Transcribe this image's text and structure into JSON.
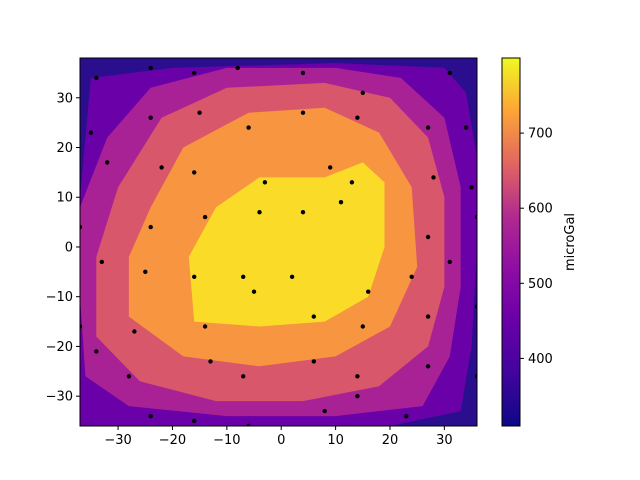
{
  "chart_data": {
    "type": "contour",
    "title": "",
    "xlabel": "",
    "ylabel": "",
    "xlim": [
      -37,
      36
    ],
    "ylim": [
      -36,
      38
    ],
    "x_ticks": [
      -30,
      -20,
      -10,
      0,
      10,
      20,
      30
    ],
    "y_ticks": [
      -30,
      -20,
      -10,
      0,
      10,
      20,
      30
    ],
    "colorbar": {
      "label": "microGal",
      "range": [
        310,
        800
      ],
      "ticks": [
        400,
        500,
        600,
        700
      ],
      "colormap": "plasma"
    },
    "contour_levels": [
      {
        "min": 310,
        "max": 400,
        "color": "#2b0e8e"
      },
      {
        "min": 400,
        "max": 480,
        "color": "#6a00a8"
      },
      {
        "min": 480,
        "max": 560,
        "color": "#a82296"
      },
      {
        "min": 560,
        "max": 640,
        "color": "#d8576b"
      },
      {
        "min": 640,
        "max": 720,
        "color": "#f89540"
      },
      {
        "min": 720,
        "max": 800,
        "color": "#fadc28"
      }
    ],
    "sample_points": [
      [
        -34,
        34
      ],
      [
        -24,
        36
      ],
      [
        -16,
        35
      ],
      [
        -8,
        36
      ],
      [
        4,
        35
      ],
      [
        31,
        35
      ],
      [
        -35,
        23
      ],
      [
        -24,
        26
      ],
      [
        -15,
        27
      ],
      [
        -6,
        24
      ],
      [
        4,
        27
      ],
      [
        14,
        26
      ],
      [
        15,
        31
      ],
      [
        27,
        24
      ],
      [
        34,
        24
      ],
      [
        -32,
        17
      ],
      [
        -22,
        16
      ],
      [
        -16,
        15
      ],
      [
        -3,
        13
      ],
      [
        9,
        16
      ],
      [
        13,
        13
      ],
      [
        28,
        14
      ],
      [
        35,
        12
      ],
      [
        -37,
        4
      ],
      [
        -24,
        4
      ],
      [
        -14,
        6
      ],
      [
        -4,
        7
      ],
      [
        4,
        7
      ],
      [
        11,
        9
      ],
      [
        36,
        6
      ],
      [
        27,
        2
      ],
      [
        -33,
        -3
      ],
      [
        -25,
        -5
      ],
      [
        -16,
        -6
      ],
      [
        -7,
        -6
      ],
      [
        2,
        -6
      ],
      [
        24,
        -6
      ],
      [
        31,
        -3
      ],
      [
        -5,
        -9
      ],
      [
        16,
        -9
      ],
      [
        -37,
        -16
      ],
      [
        -27,
        -17
      ],
      [
        -14,
        -16
      ],
      [
        6,
        -14
      ],
      [
        15,
        -16
      ],
      [
        27,
        -14
      ],
      [
        36,
        -12
      ],
      [
        -34,
        -21
      ],
      [
        -13,
        -23
      ],
      [
        6,
        -23
      ],
      [
        27,
        -24
      ],
      [
        -28,
        -26
      ],
      [
        -7,
        -26
      ],
      [
        14,
        -26
      ],
      [
        36,
        -26
      ],
      [
        -24,
        -34
      ],
      [
        -16,
        -35
      ],
      [
        -6,
        -36
      ],
      [
        8,
        -33
      ],
      [
        14,
        -30
      ],
      [
        23,
        -34
      ]
    ]
  }
}
